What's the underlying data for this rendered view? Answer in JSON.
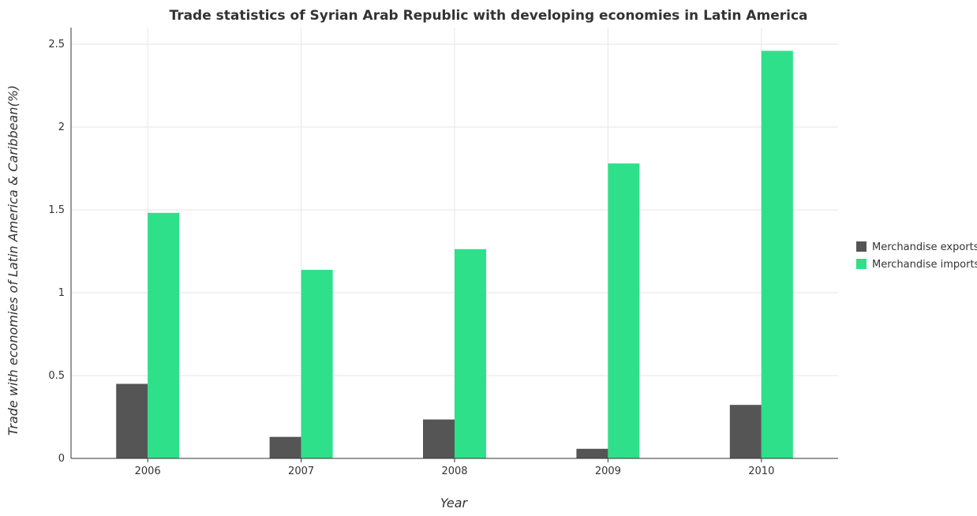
{
  "chart_data": {
    "type": "bar",
    "title": "Trade statistics of Syrian Arab Republic with developing economies in Latin America",
    "xlabel": "Year",
    "ylabel": "Trade with economies of Latin America & Caribbean(%)",
    "categories": [
      "2006",
      "2007",
      "2008",
      "2009",
      "2010"
    ],
    "series": [
      {
        "name": "Merchandise exports",
        "color": "#555555",
        "values": [
          0.45,
          0.13,
          0.235,
          0.058,
          0.323
        ]
      },
      {
        "name": "Merchandise imports",
        "color": "#2ee08a",
        "values": [
          1.482,
          1.138,
          1.263,
          1.78,
          2.46
        ]
      }
    ],
    "ylim": [
      0,
      2.6
    ],
    "yticks": [
      0,
      0.5,
      1,
      1.5,
      2,
      2.5
    ],
    "ytick_labels": [
      "0",
      "0.5",
      "1",
      "1.5",
      "2",
      "2.5"
    ],
    "grid": true,
    "legend_position": "right"
  }
}
